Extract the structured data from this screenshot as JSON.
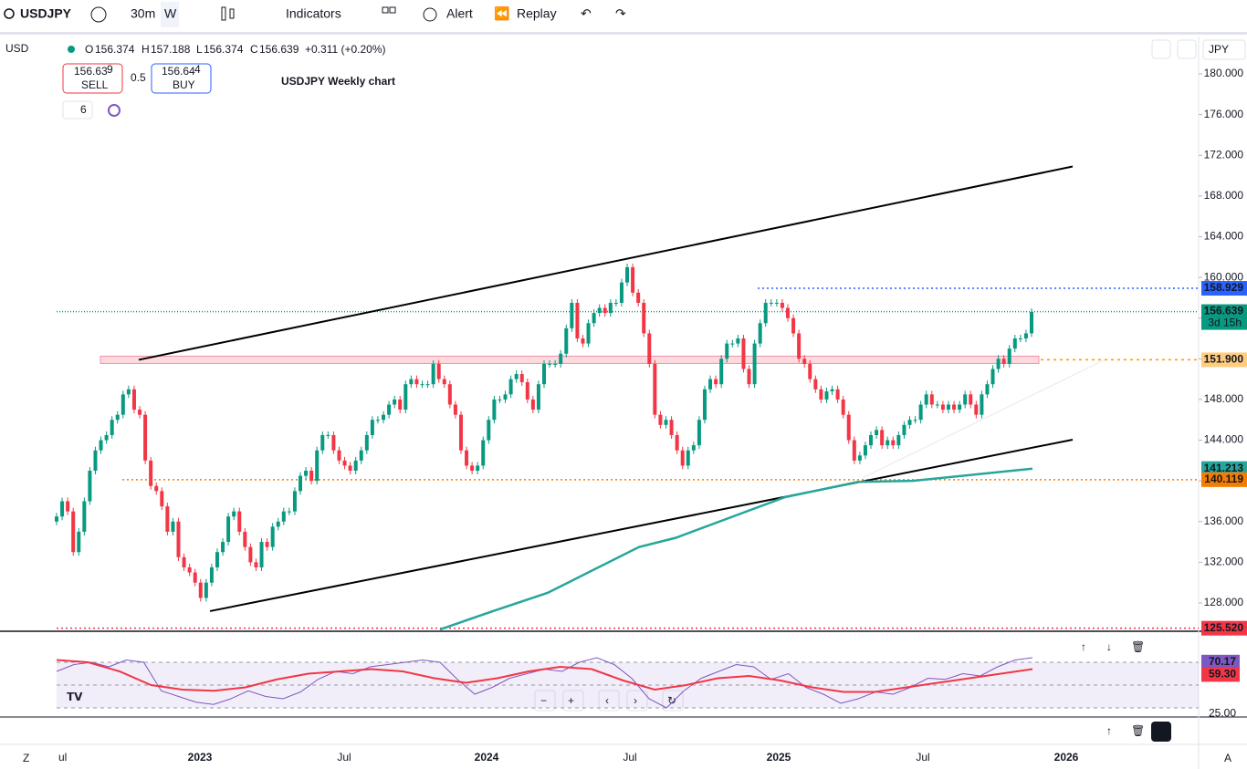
{
  "toolbar": {
    "symbol": "USDJPY",
    "interval": "30m",
    "range": "W",
    "indicators": "Indicators",
    "alert": "Alert",
    "replay": "Replay"
  },
  "legend": {
    "currency": "USD",
    "o_label": "O",
    "open": "156.374",
    "h_label": "H",
    "high": "157.188",
    "l_label": "L",
    "low": "156.374",
    "c_label": "C",
    "close": "156.639",
    "change": "+0.311 (+0.20%)"
  },
  "trade": {
    "sell_price": "156.63",
    "sell_pip": "9",
    "sell": "SELL",
    "spread": "0.5",
    "buy_price": "156.64",
    "buy_pip": "4",
    "buy": "BUY",
    "layers": "6"
  },
  "chart": {
    "title": "USDJPY Weekly chart",
    "currency": "JPY",
    "yticks": [
      {
        "value": 180,
        "label": "180.000"
      },
      {
        "value": 176,
        "label": "176.000"
      },
      {
        "value": 172,
        "label": "172.000"
      },
      {
        "value": 168,
        "label": "168.000"
      },
      {
        "value": 164,
        "label": "164.000"
      },
      {
        "value": 160,
        "label": "160.000"
      },
      {
        "value": 156,
        "label": "156.000"
      },
      {
        "value": 152,
        "label": "152.000"
      },
      {
        "value": 148,
        "label": "148.000"
      },
      {
        "value": 144,
        "label": "144.000"
      },
      {
        "value": 140,
        "label": "140.000"
      },
      {
        "value": 136,
        "label": "136.000"
      },
      {
        "value": 132,
        "label": "132.000"
      },
      {
        "value": 128,
        "label": "128.000"
      }
    ],
    "first_open": 136,
    "closes": [
      136.5,
      138,
      137,
      133,
      135,
      138,
      141,
      143,
      144,
      144.5,
      146,
      146.5,
      148.5,
      149,
      147,
      146.5,
      142,
      139.5,
      139,
      137.5,
      135,
      136,
      132.5,
      131.5,
      131,
      130,
      128.5,
      130,
      131.5,
      133,
      134,
      136.5,
      137,
      135,
      133.5,
      132,
      131.5,
      134,
      133.5,
      135.5,
      136,
      137,
      137,
      139,
      140.5,
      141,
      140,
      143,
      144.5,
      144.5,
      143,
      142,
      141.5,
      141,
      142,
      143,
      144.5,
      146,
      146,
      146.5,
      147.5,
      148,
      147,
      149.5,
      150,
      149.5,
      149.5,
      149.5,
      151.5,
      150,
      149.5,
      147.5,
      146.5,
      143,
      141.5,
      141,
      141.5,
      144,
      146,
      148,
      148,
      148.5,
      150,
      150.5,
      149.7,
      148,
      147,
      149.5,
      151.5,
      151.5,
      151.5,
      152.5,
      155,
      157.5,
      154,
      153.5,
      155.5,
      156.5,
      157,
      156.5,
      157.5,
      157.5,
      159.5,
      161,
      158.5,
      157.5,
      154.5,
      151.5,
      146.5,
      145.5,
      146,
      144.5,
      143,
      141.5,
      143,
      143.5,
      146,
      149,
      150,
      149.5,
      152,
      153.5,
      153.5,
      154,
      151,
      149.5,
      153.5,
      155.5,
      157.5,
      157.5,
      157.5,
      157,
      156,
      154.5,
      152,
      151.5,
      150,
      149,
      148,
      148.8,
      149,
      148,
      146.5,
      144,
      142,
      142.5,
      143.5,
      144.5,
      145,
      143.5,
      144,
      143.5,
      144.5,
      145.5,
      146,
      146,
      147.5,
      148.5,
      147.5,
      147.5,
      147,
      147.5,
      147,
      147.5,
      148.5,
      147.5,
      146.5,
      148.5,
      149.5,
      151,
      152,
      151.5,
      153,
      154,
      154,
      154.5,
      156.6
    ],
    "sma": [
      125.4,
      127.2,
      129,
      133.5,
      134.4,
      138.4,
      139.9,
      140,
      141.2
    ],
    "upper_channel": [
      151.9,
      170.9
    ],
    "lower_channel": [
      127.2,
      144.05
    ],
    "levels": {
      "high_line": {
        "value": 158.929,
        "label": "158.929"
      },
      "price": {
        "value": 156.639,
        "label": "156.639"
      },
      "countdown": "3d 15h",
      "resistance": {
        "value": 151.9,
        "label": "151.900"
      },
      "sma_value": {
        "value": 141.213,
        "label": "141.213"
      },
      "support": {
        "value": 140.119,
        "label": "140.119"
      },
      "low_line": {
        "value": 125.52,
        "label": "125.520"
      }
    }
  },
  "rsi": {
    "value": {
      "value": 70.17,
      "label": "70.17"
    },
    "ma_value": {
      "value": 59.3,
      "label": "59.30"
    },
    "ticks": [
      {
        "value": 25,
        "label": "25.00"
      }
    ],
    "values": [
      62,
      68,
      70,
      66,
      72,
      70,
      45,
      40,
      35,
      33,
      38,
      45,
      40,
      38,
      44,
      55,
      62,
      60,
      66,
      68,
      70,
      72,
      70,
      55,
      42,
      48,
      56,
      60,
      64,
      62,
      70,
      74,
      68,
      56,
      38,
      30,
      45,
      56,
      62,
      68,
      66,
      55,
      60,
      48,
      42,
      34,
      38,
      44,
      42,
      48,
      56,
      55,
      60,
      58,
      66,
      72,
      74
    ],
    "ma": [
      72,
      70,
      62,
      50,
      46,
      45,
      48,
      55,
      60,
      62,
      64,
      62,
      56,
      52,
      56,
      62,
      66,
      64,
      54,
      46,
      50,
      56,
      58,
      54,
      48,
      44,
      44,
      48,
      52,
      56,
      60,
      64
    ]
  },
  "time_axis": [
    "ul",
    "2023",
    "Jul",
    "2024",
    "Jul",
    "2025",
    "Jul",
    "2026"
  ],
  "corners": {
    "left": "Z",
    "right": "A"
  }
}
